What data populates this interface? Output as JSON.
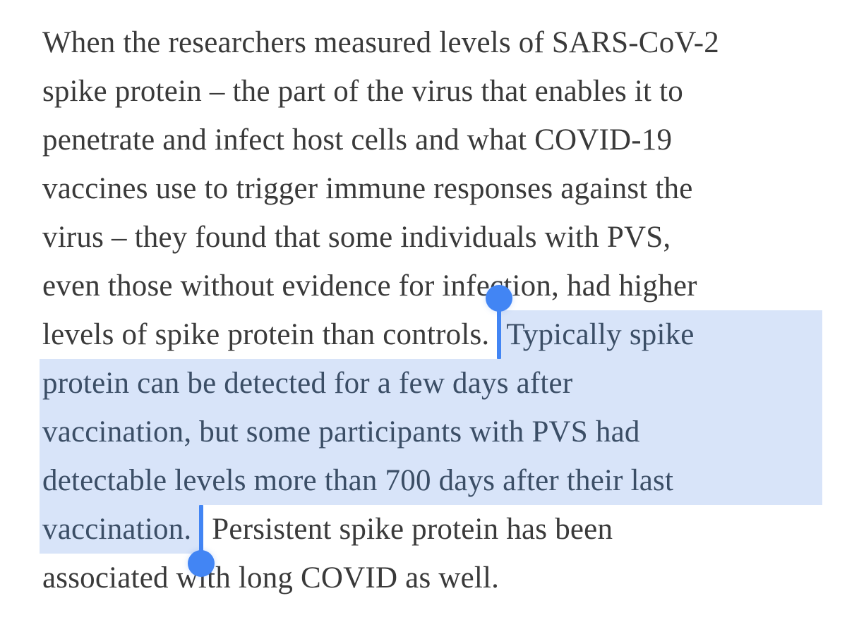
{
  "page": {
    "background_color": "#ffffff"
  },
  "selection": {
    "highlight_color": "#d8e4f9",
    "handle_color": "#4285f4",
    "selected_text_color": "#3b4e66",
    "normal_text_color": "#3a3a3a",
    "selected_text": "Typically spike protein can be detected for a few days after vaccination, but some participants with PVS had detectable levels more than 700 days after their last vaccination."
  },
  "article": {
    "lines": [
      {
        "text": "When the researchers measured levels of SARS-CoV-2"
      },
      {
        "text": "spike protein – the part of the virus that enables it to"
      },
      {
        "text": "penetrate and infect host cells and what COVID-19"
      },
      {
        "text": "vaccines use to trigger immune responses against the"
      },
      {
        "text": "virus – they found that some individuals with PVS,"
      },
      {
        "text": "even those without evidence for infection, had higher"
      },
      {
        "pre": "levels of spike protein than controls. ",
        "sel": "Typically spike"
      },
      {
        "sel": "protein can be detected for a few days after"
      },
      {
        "sel": "vaccination, but some participants with PVS had"
      },
      {
        "sel": "detectable levels more than 700 days after their last"
      },
      {
        "sel": "vaccination. ",
        "post": "Persistent spike protein has been"
      },
      {
        "text": "associated with long COVID as well."
      }
    ]
  }
}
